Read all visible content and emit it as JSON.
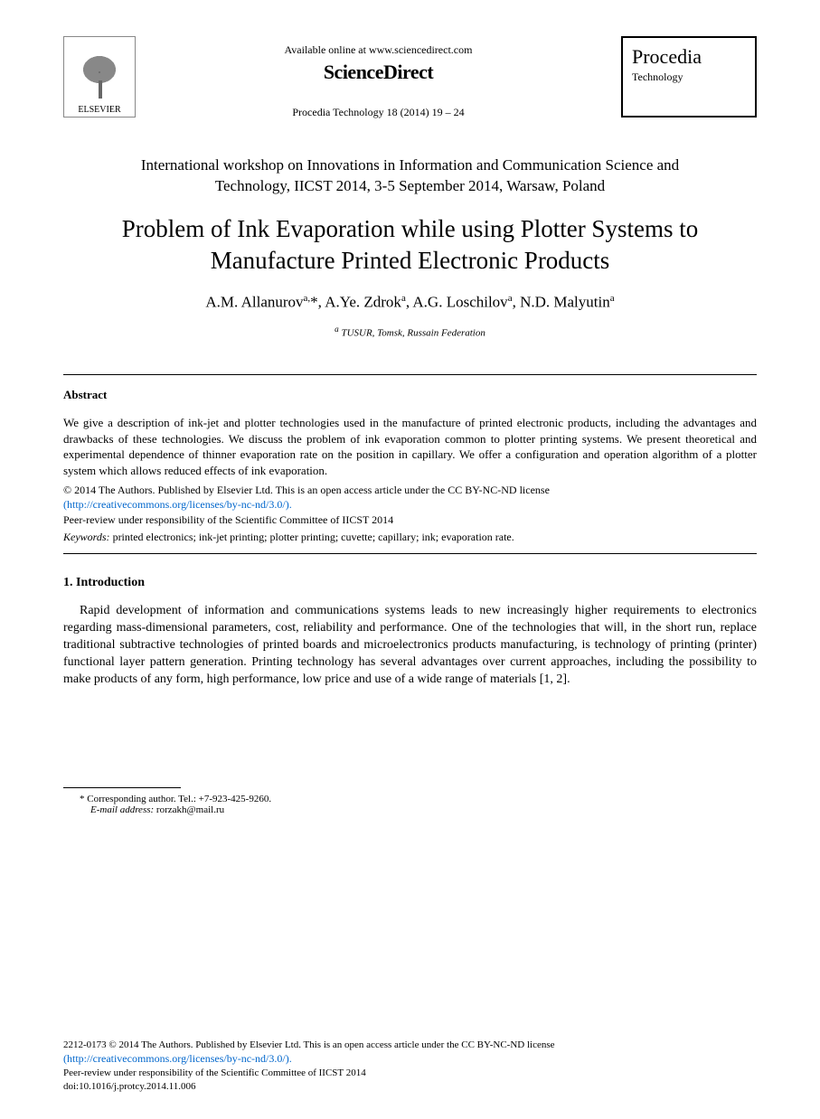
{
  "header": {
    "elsevier_label": "ELSEVIER",
    "available_online": "Available online at www.sciencedirect.com",
    "sciencedirect": "ScienceDirect",
    "journal_ref": "Procedia Technology 18 (2014) 19 – 24",
    "procedia_title": "Procedia",
    "procedia_sub": "Technology"
  },
  "workshop": {
    "line1": "International workshop on Innovations in Information and Communication Science and",
    "line2": "Technology, IICST 2014, 3-5 September 2014, Warsaw, Poland"
  },
  "title": {
    "line1": "Problem of Ink Evaporation while using Plotter Systems to",
    "line2": "Manufacture Printed Electronic Products"
  },
  "authors": {
    "a1_name": "A.M. Allanurov",
    "a1_sup": "a,",
    "a1_mark": "*",
    "a2_name": ", A.Ye. Zdrok",
    "a2_sup": "a",
    "a3_name": ", A.G. Loschilov",
    "a3_sup": "a",
    "a4_name": ", N.D. Malyutin",
    "a4_sup": "a"
  },
  "affiliation": {
    "sup": "a",
    "text": " TUSUR, Tomsk, Russain Federation"
  },
  "abstract": {
    "heading": "Abstract",
    "body": "We give a description of ink-jet and plotter technologies used in the manufacture of printed electronic products, including the advantages and drawbacks of these technologies. We discuss the problem of ink evaporation common to plotter printing systems. We present theoretical and experimental dependence of thinner evaporation rate on the position in capillary. We offer a configuration and operation algorithm of a plotter system which allows reduced effects of ink evaporation."
  },
  "copyright": {
    "line1": "© 2014 The Authors. Published by Elsevier Ltd. This is an open access article under the CC BY-NC-ND license",
    "license_url": "(http://creativecommons.org/licenses/by-nc-nd/3.0/).",
    "peer_review": "Peer-review under responsibility of the Scientific Committee of IICST 2014"
  },
  "keywords": {
    "label": "Keywords:",
    "text": " printed electronics; ink-jet printing; plotter printing; cuvette; capillary; ink; evaporation rate."
  },
  "section1": {
    "heading": "1. Introduction",
    "body": "Rapid development of information and communications systems leads to new increasingly higher requirements to electronics regarding mass-dimensional parameters, cost, reliability and performance. One of the technologies that will, in the short run, replace traditional subtractive technologies of printed boards and microelectronics products manufacturing, is technology of printing (printer) functional layer pattern generation. Printing technology has several advantages over current approaches, including the possibility to make products of any form, high performance, low price and use of a wide range of materials [1, 2]."
  },
  "corresponding": {
    "text": "* Corresponding author. Tel.: +7-923-425-9260.",
    "email_label": "E-mail address:",
    "email": " rorzakh@mail.ru"
  },
  "footer": {
    "issn": "2212-0173 © 2014 The Authors. Published by Elsevier Ltd. This is an open access article under the CC BY-NC-ND license",
    "license_url": "(http://creativecommons.org/licenses/by-nc-nd/3.0/).",
    "peer_review": "Peer-review under responsibility of the Scientific Committee of IICST 2014",
    "doi": "doi:10.1016/j.protcy.2014.11.006"
  },
  "colors": {
    "link": "#0066cc",
    "text": "#000000",
    "background": "#ffffff"
  }
}
